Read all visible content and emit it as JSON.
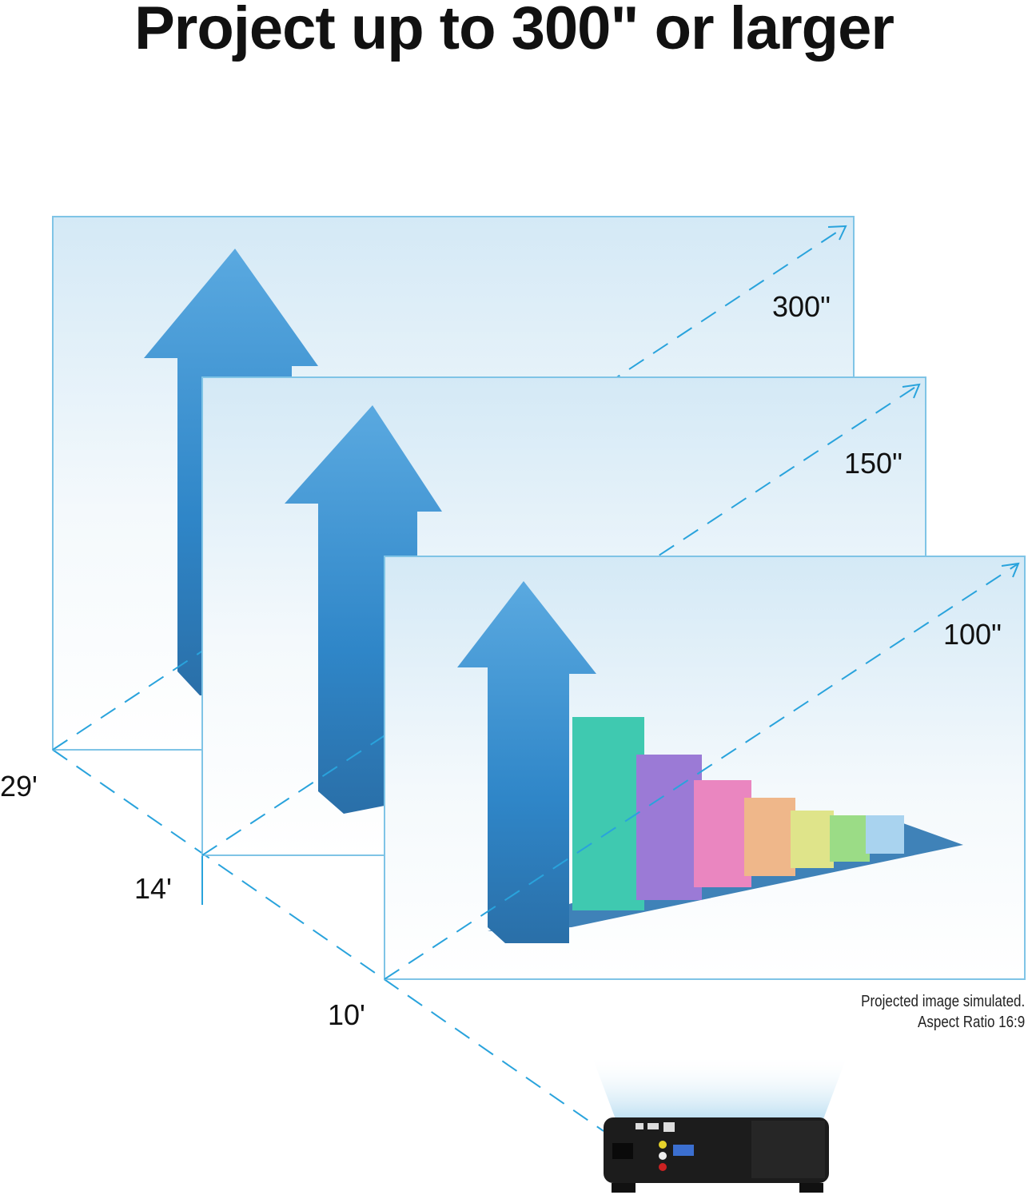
{
  "title": "Project up to 300\" or larger",
  "screens": [
    {
      "size_label": "300\"",
      "distance_label": "29'"
    },
    {
      "size_label": "150\"",
      "distance_label": "14'"
    },
    {
      "size_label": "100\"",
      "distance_label": "10'"
    }
  ],
  "footnote": {
    "line1": "Projected image simulated.",
    "line2": "Aspect Ratio 16:9"
  },
  "colors": {
    "dash_line": "#29a3dc",
    "screen_border": "#7fc4e6",
    "arrow_blue": "#2f86c8",
    "projector": "#1a1a1a"
  }
}
